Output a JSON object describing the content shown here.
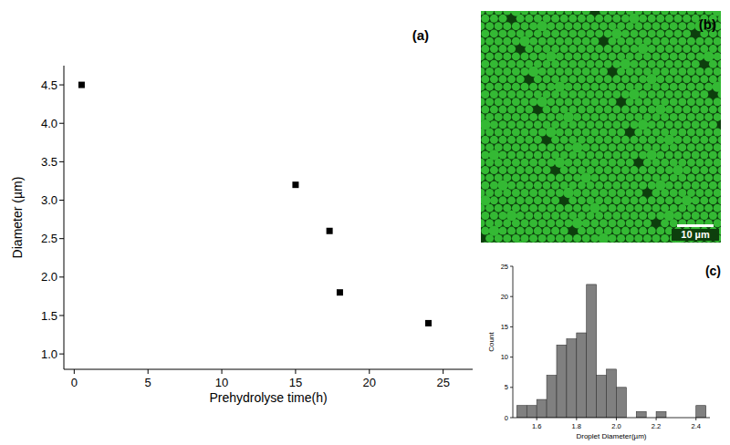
{
  "chart_data": [
    {
      "type": "scatter",
      "panel_label": "(a)",
      "x_label": "Prehydrolyse time(h)",
      "y_label": "Diameter (µm)",
      "x": [
        0.5,
        15,
        17.3,
        18,
        24
      ],
      "y": [
        4.5,
        3.2,
        2.6,
        1.8,
        1.4
      ],
      "color": "#000000",
      "marker": "square",
      "xlim": [
        -0.7,
        27
      ],
      "ylim": [
        0.8,
        4.75
      ],
      "xticks": [
        0,
        5,
        10,
        15,
        20,
        25
      ],
      "yticks": [
        {
          "value": 1,
          "label": "1.0"
        },
        1.5,
        {
          "value": 2,
          "label": "2.0"
        },
        2.5,
        {
          "value": 3,
          "label": "3.0"
        },
        3.5,
        {
          "value": 4,
          "label": "4.0"
        },
        4.5
      ],
      "grid": false
    },
    {
      "type": "histogram",
      "panel_label": "(c)",
      "x_label": "Droplet Diameter(µm)",
      "y_label": "Count",
      "bins": [
        1.5,
        1.55,
        1.6,
        1.65,
        1.7,
        1.75,
        1.8,
        1.85,
        1.9,
        1.95,
        2.0,
        2.05,
        2.1,
        2.15,
        2.2,
        2.25,
        2.3,
        2.35,
        2.4,
        2.45
      ],
      "values": [
        2,
        2,
        3,
        7,
        12,
        13,
        14,
        22,
        7,
        8,
        5,
        0,
        1,
        0,
        1,
        0,
        0,
        0,
        2
      ],
      "color": "#808080",
      "xlim": [
        1.48,
        2.47
      ],
      "ylim": [
        0,
        25
      ],
      "xticks": [
        1.6,
        1.8,
        {
          "value": 2,
          "label": "2.0"
        },
        2.2,
        2.4
      ],
      "yticks": [
        0,
        5,
        10,
        15,
        20,
        25
      ],
      "grid": false
    }
  ],
  "image": {
    "panel_label": "(b)",
    "scale_bar": "10 µm"
  }
}
